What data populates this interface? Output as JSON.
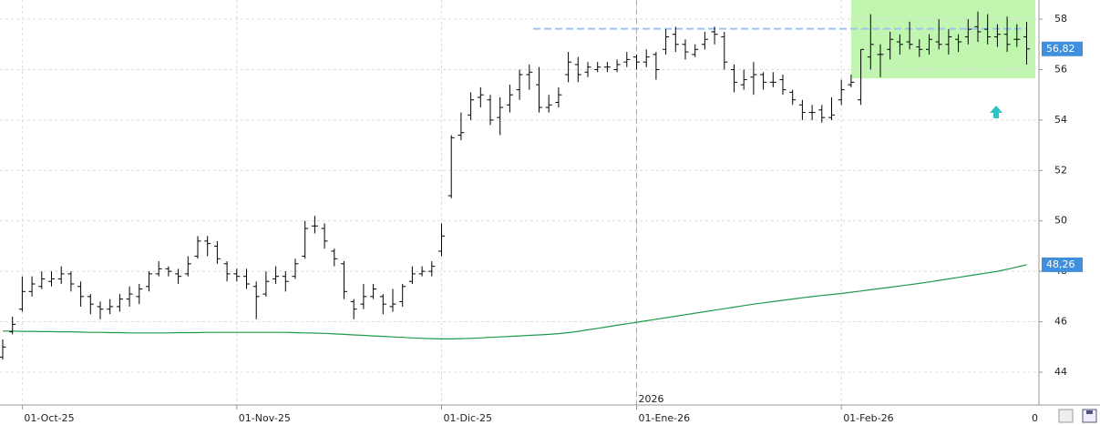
{
  "chart_data": {
    "type": "ohlc",
    "categories": [
      null,
      null,
      "01-Oct-25",
      null,
      null,
      null,
      null,
      null,
      null,
      null,
      null,
      null,
      null,
      null,
      null,
      null,
      null,
      null,
      null,
      null,
      null,
      null,
      null,
      null,
      "01-Nov-25",
      null,
      null,
      null,
      null,
      null,
      null,
      null,
      null,
      null,
      null,
      null,
      null,
      null,
      null,
      null,
      null,
      null,
      null,
      null,
      null,
      "01-Dic-25",
      null,
      null,
      null,
      null,
      null,
      null,
      null,
      null,
      null,
      null,
      null,
      null,
      null,
      null,
      null,
      null,
      null,
      null,
      null,
      "01-Ene-26",
      null,
      null,
      null,
      null,
      null,
      null,
      null,
      null,
      null,
      null,
      null,
      null,
      null,
      null,
      null,
      null,
      null,
      null,
      null,
      null,
      "01-Feb-26",
      null,
      null,
      null,
      null,
      null,
      null,
      null,
      null,
      null,
      null,
      null,
      null,
      null,
      null,
      null,
      null,
      null,
      null,
      null
    ],
    "year_label": "2026",
    "x_axis_end_label": "0",
    "ohlc": [
      [
        44.6,
        45.3,
        44.5,
        45.0
      ],
      [
        45.6,
        46.2,
        45.5,
        45.9
      ],
      [
        46.5,
        47.8,
        46.4,
        47.2
      ],
      [
        47.2,
        47.8,
        47.0,
        47.5
      ],
      [
        47.4,
        48.0,
        47.3,
        47.7
      ],
      [
        47.6,
        48.0,
        47.4,
        47.7
      ],
      [
        47.7,
        48.2,
        47.5,
        47.9
      ],
      [
        47.9,
        48.0,
        47.2,
        47.5
      ],
      [
        47.4,
        47.6,
        46.6,
        47.0
      ],
      [
        47.0,
        47.1,
        46.3,
        46.7
      ],
      [
        46.6,
        46.8,
        46.1,
        46.5
      ],
      [
        46.5,
        46.9,
        46.3,
        46.6
      ],
      [
        46.6,
        47.1,
        46.4,
        46.9
      ],
      [
        46.9,
        47.4,
        46.6,
        47.1
      ],
      [
        47.0,
        47.5,
        46.7,
        47.3
      ],
      [
        47.4,
        48.0,
        47.2,
        47.9
      ],
      [
        47.9,
        48.4,
        47.8,
        48.1
      ],
      [
        48.1,
        48.2,
        47.8,
        48.0
      ],
      [
        47.9,
        48.1,
        47.5,
        47.8
      ],
      [
        47.9,
        48.6,
        47.8,
        48.3
      ],
      [
        48.6,
        49.4,
        48.5,
        49.2
      ],
      [
        49.2,
        49.4,
        48.6,
        49.1
      ],
      [
        49.0,
        49.2,
        48.3,
        48.5
      ],
      [
        48.3,
        48.4,
        47.6,
        47.9
      ],
      [
        47.9,
        48.1,
        47.6,
        47.8
      ],
      [
        47.8,
        48.1,
        47.3,
        47.5
      ],
      [
        47.4,
        47.6,
        46.1,
        47.0
      ],
      [
        47.1,
        48.0,
        47.0,
        47.6
      ],
      [
        47.7,
        48.2,
        47.5,
        47.8
      ],
      [
        47.8,
        48.0,
        47.2,
        47.6
      ],
      [
        47.8,
        48.5,
        47.7,
        48.3
      ],
      [
        48.6,
        50.0,
        48.5,
        49.7
      ],
      [
        49.8,
        50.2,
        49.5,
        49.8
      ],
      [
        49.7,
        49.9,
        48.9,
        49.2
      ],
      [
        48.8,
        48.9,
        48.2,
        48.5
      ],
      [
        48.3,
        48.4,
        46.9,
        47.2
      ],
      [
        46.8,
        46.9,
        46.1,
        46.5
      ],
      [
        46.7,
        47.5,
        46.5,
        47.0
      ],
      [
        47.0,
        47.5,
        46.9,
        47.3
      ],
      [
        47.0,
        47.1,
        46.3,
        46.7
      ],
      [
        46.6,
        47.3,
        46.4,
        46.7
      ],
      [
        46.8,
        47.5,
        46.6,
        47.4
      ],
      [
        47.6,
        48.2,
        47.5,
        47.9
      ],
      [
        47.9,
        48.2,
        47.8,
        48.0
      ],
      [
        48.0,
        48.4,
        47.8,
        48.2
      ],
      [
        48.8,
        49.9,
        48.6,
        49.4
      ],
      [
        51.0,
        53.4,
        50.9,
        53.3
      ],
      [
        53.4,
        54.3,
        53.2,
        53.5
      ],
      [
        54.2,
        55.1,
        54.0,
        54.8
      ],
      [
        54.9,
        55.3,
        54.5,
        55.0
      ],
      [
        54.8,
        55.0,
        53.8,
        54.0
      ],
      [
        54.1,
        54.9,
        53.4,
        54.5
      ],
      [
        54.6,
        55.4,
        54.3,
        55.0
      ],
      [
        55.2,
        56.0,
        54.8,
        55.8
      ],
      [
        55.8,
        56.2,
        55.2,
        55.9
      ],
      [
        55.4,
        56.1,
        54.3,
        54.5
      ],
      [
        54.5,
        55.0,
        54.3,
        54.6
      ],
      [
        54.7,
        55.3,
        54.5,
        55.0
      ],
      [
        55.8,
        56.7,
        55.5,
        56.3
      ],
      [
        56.2,
        56.5,
        55.5,
        55.8
      ],
      [
        55.9,
        56.3,
        55.7,
        56.1
      ],
      [
        56.0,
        56.3,
        55.9,
        56.1
      ],
      [
        56.1,
        56.3,
        55.9,
        56.1
      ],
      [
        56.0,
        56.4,
        55.9,
        56.2
      ],
      [
        56.3,
        56.7,
        56.1,
        56.4
      ],
      [
        56.5,
        56.6,
        56.0,
        56.3
      ],
      [
        56.3,
        56.8,
        56.1,
        56.5
      ],
      [
        56.6,
        56.7,
        55.6,
        56.0
      ],
      [
        56.8,
        57.6,
        56.6,
        57.3
      ],
      [
        57.4,
        57.7,
        56.7,
        57.0
      ],
      [
        57.0,
        57.2,
        56.4,
        56.7
      ],
      [
        56.6,
        57.0,
        56.5,
        56.8
      ],
      [
        57.0,
        57.5,
        56.8,
        57.2
      ],
      [
        57.5,
        57.7,
        57.0,
        57.4
      ],
      [
        57.3,
        57.5,
        56.0,
        56.3
      ],
      [
        56.0,
        56.2,
        55.1,
        55.5
      ],
      [
        55.4,
        56.0,
        55.2,
        55.6
      ],
      [
        55.7,
        56.3,
        55.0,
        55.8
      ],
      [
        55.8,
        55.9,
        55.2,
        55.5
      ],
      [
        55.5,
        55.9,
        55.3,
        55.5
      ],
      [
        55.6,
        55.8,
        55.0,
        55.2
      ],
      [
        55.1,
        55.2,
        54.6,
        54.8
      ],
      [
        54.6,
        54.8,
        54.0,
        54.3
      ],
      [
        54.3,
        54.6,
        54.0,
        54.3
      ],
      [
        54.4,
        54.6,
        53.9,
        54.1
      ],
      [
        54.1,
        54.9,
        54.0,
        54.2
      ],
      [
        54.8,
        55.6,
        54.6,
        55.2
      ],
      [
        55.4,
        55.8,
        55.3,
        55.5
      ],
      [
        54.8,
        56.8,
        54.6,
        56.8
      ],
      [
        56.5,
        58.2,
        56.0,
        57.0
      ],
      [
        56.6,
        57.0,
        55.7,
        56.6
      ],
      [
        56.8,
        57.5,
        56.4,
        57.2
      ],
      [
        57.1,
        57.4,
        56.6,
        57.0
      ],
      [
        57.1,
        57.9,
        56.8,
        57.0
      ],
      [
        56.9,
        57.2,
        56.5,
        56.8
      ],
      [
        56.8,
        57.4,
        56.6,
        57.2
      ],
      [
        57.1,
        58.0,
        56.8,
        57.0
      ],
      [
        57.0,
        57.6,
        56.6,
        57.3
      ],
      [
        57.2,
        57.4,
        56.7,
        57.1
      ],
      [
        57.3,
        58.0,
        57.0,
        57.6
      ],
      [
        57.7,
        58.3,
        57.1,
        57.5
      ],
      [
        57.6,
        58.2,
        57.0,
        57.3
      ],
      [
        57.3,
        57.8,
        56.9,
        57.4
      ],
      [
        57.4,
        58.1,
        56.7,
        57.0
      ],
      [
        57.2,
        57.8,
        56.9,
        57.2
      ],
      [
        57.3,
        57.9,
        56.2,
        56.82
      ]
    ],
    "price_color": "#000000",
    "price_label": {
      "value": 56.82,
      "label": "56,82"
    },
    "moving_average": {
      "color": "#1e9a4a",
      "values": [
        45.63,
        45.63,
        45.62,
        45.62,
        45.61,
        45.61,
        45.6,
        45.6,
        45.59,
        45.58,
        45.58,
        45.57,
        45.57,
        45.56,
        45.56,
        45.56,
        45.56,
        45.56,
        45.57,
        45.57,
        45.57,
        45.58,
        45.58,
        45.58,
        45.58,
        45.58,
        45.58,
        45.58,
        45.58,
        45.58,
        45.57,
        45.56,
        45.55,
        45.54,
        45.52,
        45.5,
        45.48,
        45.46,
        45.44,
        45.42,
        45.4,
        45.38,
        45.36,
        45.34,
        45.33,
        45.32,
        45.32,
        45.33,
        45.34,
        45.36,
        45.38,
        45.4,
        45.42,
        45.44,
        45.46,
        45.48,
        45.5,
        45.53,
        45.57,
        45.62,
        45.68,
        45.74,
        45.8,
        45.86,
        45.92,
        45.98,
        46.04,
        46.1,
        46.16,
        46.22,
        46.28,
        46.34,
        46.4,
        46.46,
        46.52,
        46.58,
        46.64,
        46.7,
        46.75,
        46.8,
        46.85,
        46.9,
        46.95,
        47.0,
        47.04,
        47.08,
        47.12,
        47.17,
        47.22,
        47.27,
        47.32,
        47.37,
        47.42,
        47.47,
        47.52,
        47.58,
        47.64,
        47.7,
        47.76,
        47.82,
        47.88,
        47.94,
        48.0,
        48.08,
        48.17,
        48.26
      ]
    },
    "ma_label": {
      "value": 48.26,
      "label": "48,26"
    },
    "resistance": {
      "value": 57.62,
      "color": "#9ec3ee"
    },
    "zone": {
      "range": [
        55.65,
        58.76
      ],
      "color": "#b6f5a3"
    },
    "ylim": [
      42.7,
      58.76
    ],
    "yticks": [
      44,
      46,
      48,
      50,
      52,
      54,
      56,
      58
    ],
    "grid": true,
    "label_color": "#3f8fdc"
  }
}
